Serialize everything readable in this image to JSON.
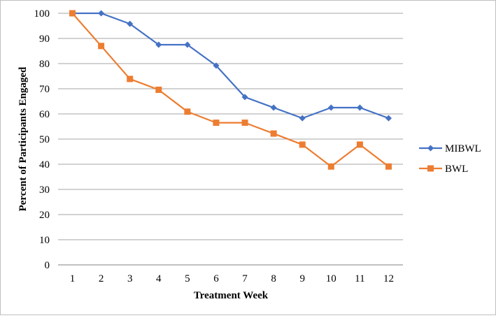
{
  "chart_data": {
    "type": "line",
    "title": "",
    "xlabel": "Treatment Week",
    "ylabel": "Percent of Participants Engaged",
    "categories": [
      "1",
      "2",
      "3",
      "4",
      "5",
      "6",
      "7",
      "8",
      "9",
      "10",
      "11",
      "12"
    ],
    "ylim": [
      0,
      100
    ],
    "yticks": [
      "0",
      "10",
      "20",
      "30",
      "40",
      "50",
      "60",
      "70",
      "80",
      "90",
      "100"
    ],
    "grid": true,
    "legend_position": "right",
    "series": [
      {
        "name": "MIBWL",
        "color": "#4472C4",
        "marker": "diamond",
        "values": [
          100,
          100,
          95.8,
          87.5,
          87.5,
          79.2,
          66.7,
          62.5,
          58.3,
          62.5,
          62.5,
          58.3
        ]
      },
      {
        "name": "BWL",
        "color": "#ED7D31",
        "marker": "square",
        "values": [
          100,
          87.0,
          73.9,
          69.6,
          60.9,
          56.5,
          56.5,
          52.2,
          47.8,
          39.1,
          47.8,
          39.1
        ]
      }
    ]
  }
}
